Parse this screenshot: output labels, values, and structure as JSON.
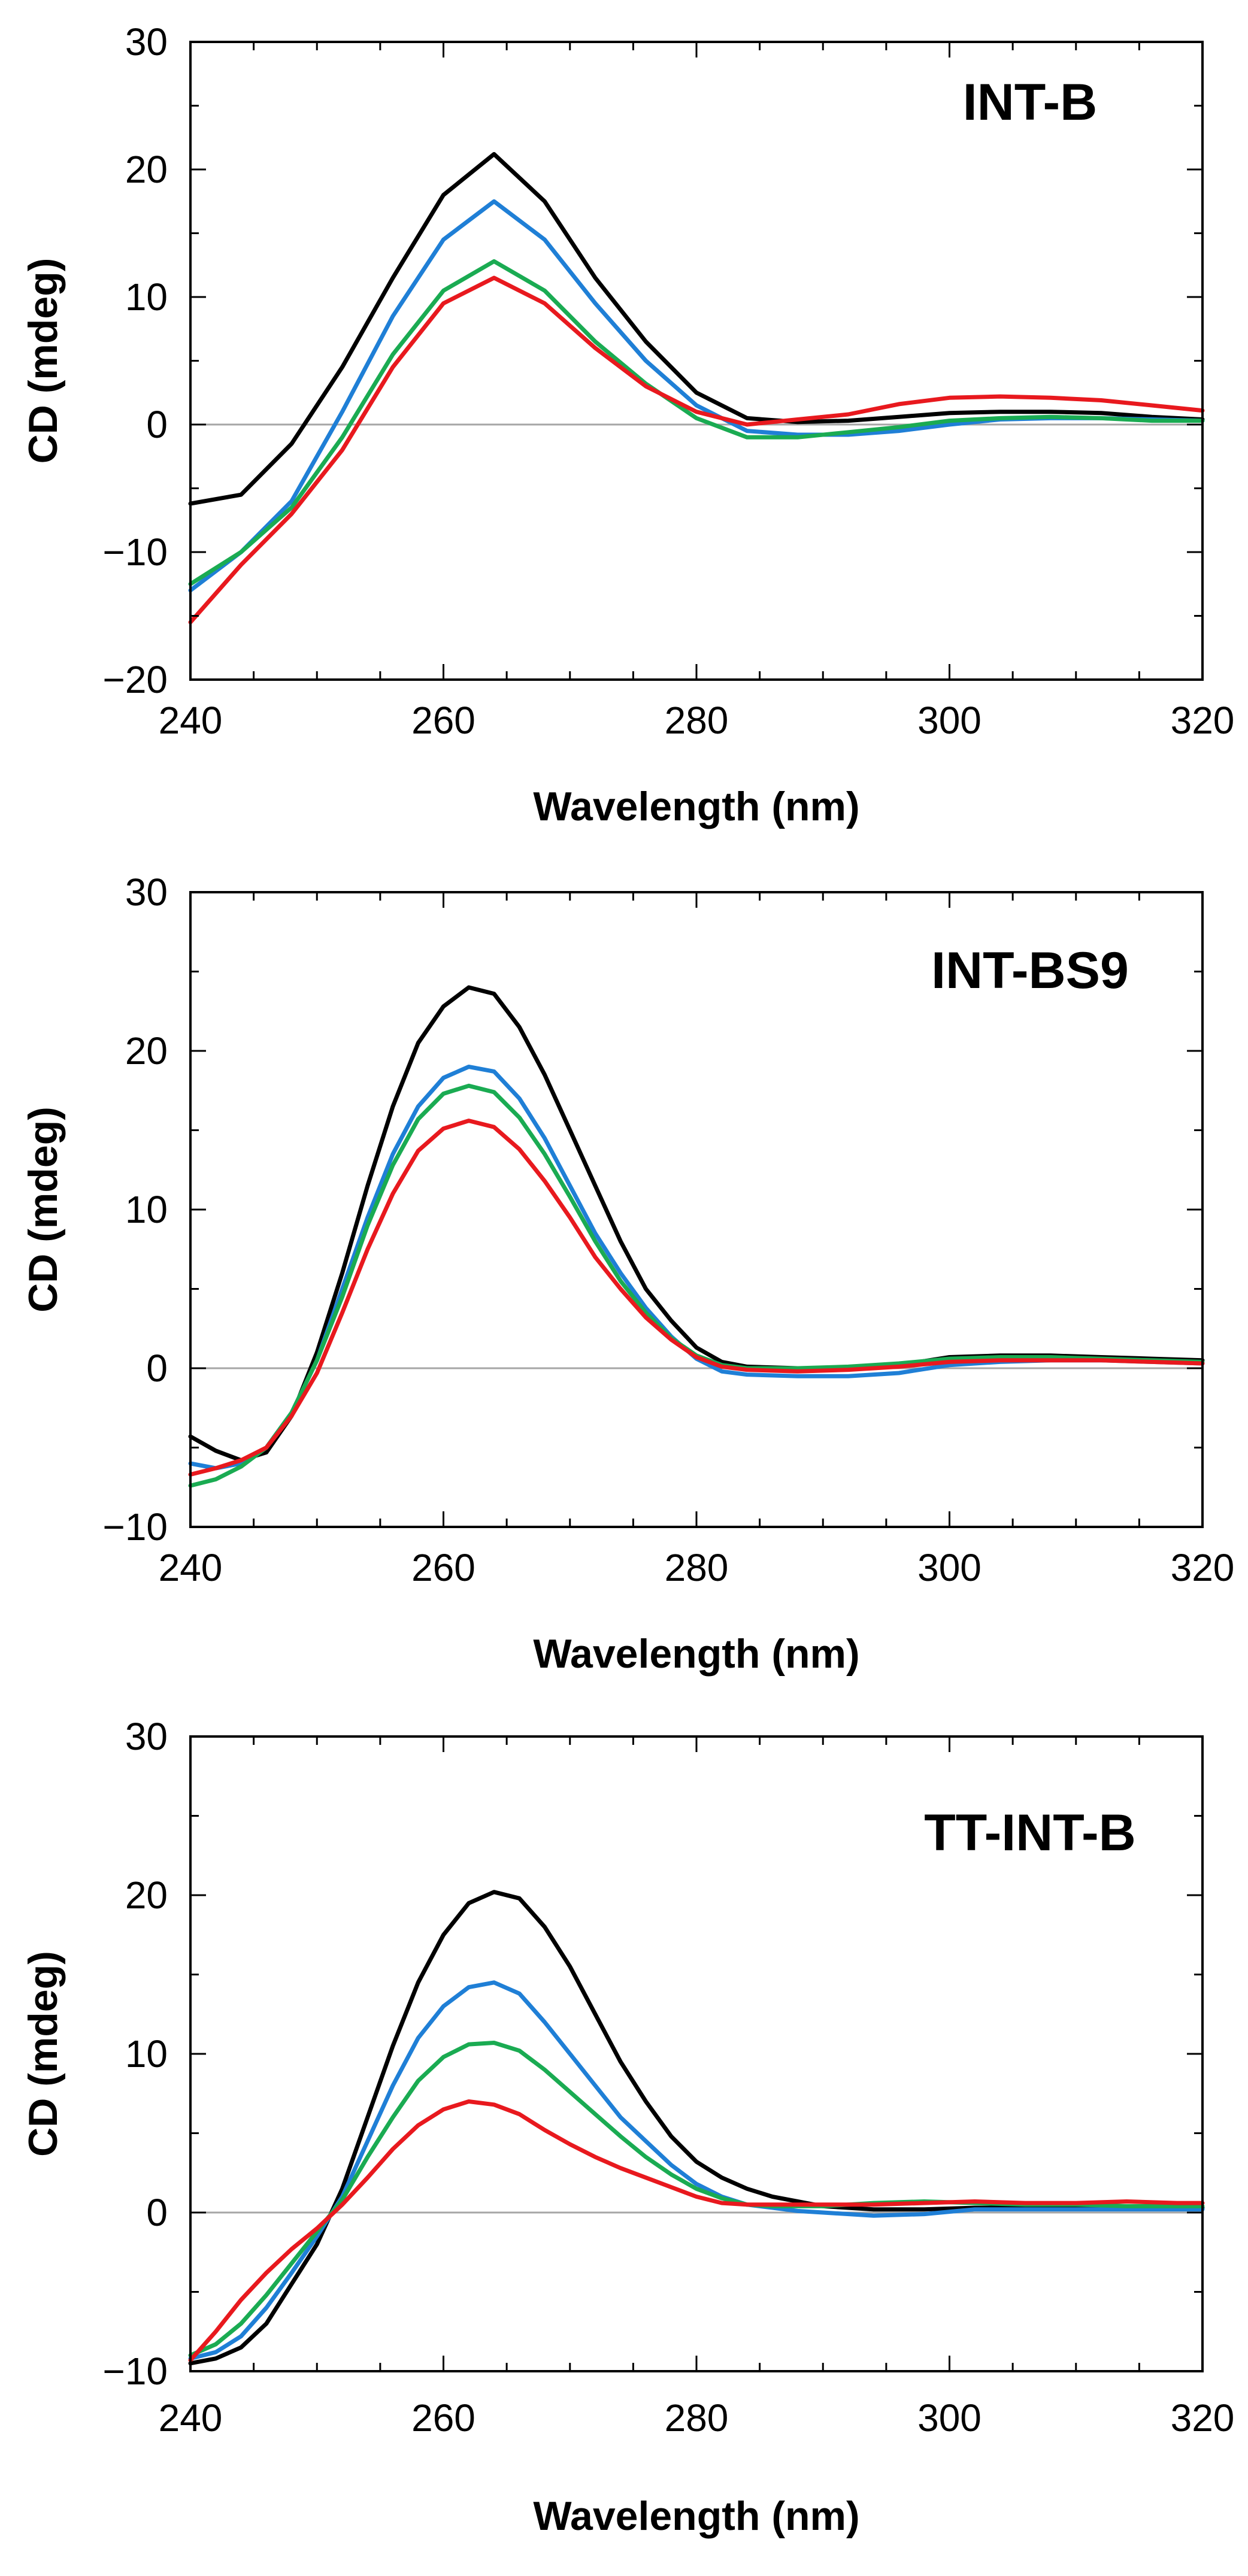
{
  "chart_data": [
    {
      "type": "line",
      "title": "INT-B",
      "xlabel": "Wavelength (nm)",
      "ylabel": "CD (mdeg)",
      "xlim": [
        240,
        320
      ],
      "ylim": [
        -20,
        30
      ],
      "xticks": [
        "240",
        "260",
        "280",
        "300",
        "320"
      ],
      "yticks": [
        "30",
        "20",
        "10",
        "0",
        "−10",
        "−20"
      ],
      "series": [
        {
          "name": "black",
          "color": "#000000",
          "x": [
            240,
            244,
            248,
            252,
            256,
            260,
            264,
            268,
            272,
            276,
            280,
            284,
            288,
            292,
            296,
            300,
            304,
            308,
            312,
            316,
            320
          ],
          "y": [
            -6.2,
            -5.5,
            -1.5,
            4.5,
            11.5,
            18,
            21.2,
            17.5,
            11.5,
            6.5,
            2.5,
            0.5,
            0.2,
            0.3,
            0.6,
            0.9,
            1.0,
            1.0,
            0.9,
            0.6,
            0.4
          ]
        },
        {
          "name": "blue",
          "color": "#1f7fd6",
          "x": [
            240,
            244,
            248,
            252,
            256,
            260,
            264,
            268,
            272,
            276,
            280,
            284,
            288,
            292,
            296,
            300,
            304,
            308,
            312,
            316,
            320
          ],
          "y": [
            -13,
            -10,
            -6,
            1,
            8.5,
            14.5,
            17.5,
            14.5,
            9.5,
            5,
            1.5,
            -0.5,
            -0.8,
            -0.8,
            -0.5,
            0,
            0.4,
            0.5,
            0.5,
            0.4,
            0.3
          ]
        },
        {
          "name": "green",
          "color": "#1aab52",
          "x": [
            240,
            244,
            248,
            252,
            256,
            260,
            264,
            268,
            272,
            276,
            280,
            284,
            288,
            292,
            296,
            300,
            304,
            308,
            312,
            316,
            320
          ],
          "y": [
            -12.5,
            -10,
            -6.5,
            -1,
            5.5,
            10.5,
            12.8,
            10.5,
            6.5,
            3.2,
            0.5,
            -1,
            -1,
            -0.6,
            -0.2,
            0.3,
            0.5,
            0.6,
            0.5,
            0.3,
            0.3
          ]
        },
        {
          "name": "red",
          "color": "#e8191e",
          "x": [
            240,
            244,
            248,
            252,
            256,
            260,
            264,
            268,
            272,
            276,
            280,
            284,
            288,
            292,
            296,
            300,
            304,
            308,
            312,
            316,
            320
          ],
          "y": [
            -15.5,
            -11,
            -7,
            -2,
            4.5,
            9.5,
            11.5,
            9.5,
            6,
            3,
            1,
            0,
            0.4,
            0.8,
            1.6,
            2.1,
            2.2,
            2.1,
            1.9,
            1.5,
            1.1
          ]
        }
      ]
    },
    {
      "type": "line",
      "title": "INT-BS9",
      "xlabel": "Wavelength (nm)",
      "ylabel": "CD (mdeg)",
      "xlim": [
        240,
        320
      ],
      "ylim": [
        -10,
        30
      ],
      "xticks": [
        "240",
        "260",
        "280",
        "300",
        "320"
      ],
      "yticks": [
        "30",
        "20",
        "10",
        "0",
        "−10"
      ],
      "series": [
        {
          "name": "black",
          "color": "#000000",
          "x": [
            240,
            242,
            244,
            246,
            248,
            250,
            252,
            254,
            256,
            258,
            260,
            262,
            264,
            266,
            268,
            270,
            272,
            274,
            276,
            278,
            280,
            282,
            284,
            288,
            292,
            296,
            300,
            304,
            308,
            312,
            316,
            320
          ],
          "y": [
            -4.3,
            -5.2,
            -5.8,
            -5.3,
            -3,
            1,
            6,
            11.5,
            16.5,
            20.5,
            22.8,
            24,
            23.6,
            21.5,
            18.5,
            15,
            11.5,
            8,
            5,
            3,
            1.3,
            0.4,
            0.1,
            0,
            0,
            0.2,
            0.7,
            0.8,
            0.8,
            0.7,
            0.6,
            0.5
          ]
        },
        {
          "name": "blue",
          "color": "#1f7fd6",
          "x": [
            240,
            242,
            244,
            246,
            248,
            250,
            252,
            254,
            256,
            258,
            260,
            262,
            264,
            266,
            268,
            270,
            272,
            274,
            276,
            278,
            280,
            282,
            284,
            288,
            292,
            296,
            300,
            304,
            308,
            312,
            316,
            320
          ],
          "y": [
            -6,
            -6.3,
            -6,
            -5,
            -2.8,
            0.5,
            5,
            9.5,
            13.5,
            16.5,
            18.3,
            19,
            18.7,
            17,
            14.5,
            11.5,
            8.5,
            6,
            3.8,
            2,
            0.6,
            -0.2,
            -0.4,
            -0.5,
            -0.5,
            -0.3,
            0.2,
            0.4,
            0.5,
            0.5,
            0.4,
            0.3
          ]
        },
        {
          "name": "green",
          "color": "#1aab52",
          "x": [
            240,
            242,
            244,
            246,
            248,
            250,
            252,
            254,
            256,
            258,
            260,
            262,
            264,
            266,
            268,
            270,
            272,
            274,
            276,
            278,
            280,
            282,
            284,
            288,
            292,
            296,
            300,
            304,
            308,
            312,
            316,
            320
          ],
          "y": [
            -7.4,
            -7,
            -6.2,
            -5,
            -2.8,
            0.5,
            4.5,
            9,
            12.8,
            15.7,
            17.3,
            17.8,
            17.4,
            15.8,
            13.5,
            10.8,
            8,
            5.5,
            3.5,
            1.9,
            0.8,
            0.2,
            0,
            0,
            0.1,
            0.3,
            0.6,
            0.7,
            0.7,
            0.6,
            0.5,
            0.4
          ]
        },
        {
          "name": "red",
          "color": "#e8191e",
          "x": [
            240,
            242,
            244,
            246,
            248,
            250,
            252,
            254,
            256,
            258,
            260,
            262,
            264,
            266,
            268,
            270,
            272,
            274,
            276,
            278,
            280,
            282,
            284,
            288,
            292,
            296,
            300,
            304,
            308,
            312,
            316,
            320
          ],
          "y": [
            -6.7,
            -6.3,
            -5.8,
            -5,
            -3,
            -0.3,
            3.5,
            7.5,
            11,
            13.7,
            15.1,
            15.6,
            15.2,
            13.8,
            11.8,
            9.5,
            7,
            5,
            3.2,
            1.8,
            0.7,
            0.1,
            -0.1,
            -0.2,
            -0.1,
            0.1,
            0.4,
            0.5,
            0.5,
            0.5,
            0.4,
            0.3
          ]
        }
      ]
    },
    {
      "type": "line",
      "title": "TT-INT-B",
      "xlabel": "Wavelength (nm)",
      "ylabel": "CD (mdeg)",
      "xlim": [
        240,
        320
      ],
      "ylim": [
        -10,
        30
      ],
      "xticks": [
        "240",
        "260",
        "280",
        "300",
        "320"
      ],
      "yticks": [
        "30",
        "20",
        "10",
        "0",
        "−10"
      ],
      "series": [
        {
          "name": "black",
          "color": "#000000",
          "x": [
            240,
            242,
            244,
            246,
            248,
            250,
            252,
            254,
            256,
            258,
            260,
            262,
            264,
            266,
            268,
            270,
            272,
            274,
            276,
            278,
            280,
            282,
            284,
            286,
            288,
            290,
            294,
            298,
            302,
            306,
            310,
            314,
            318,
            320
          ],
          "y": [
            -9.5,
            -9.2,
            -8.5,
            -7,
            -4.5,
            -2,
            1.5,
            6,
            10.5,
            14.5,
            17.5,
            19.5,
            20.2,
            19.8,
            18,
            15.5,
            12.5,
            9.5,
            7,
            4.8,
            3.2,
            2.2,
            1.5,
            1,
            0.7,
            0.4,
            0.2,
            0.2,
            0.3,
            0.3,
            0.3,
            0.3,
            0.3,
            0.3
          ]
        },
        {
          "name": "blue",
          "color": "#1f7fd6",
          "x": [
            240,
            242,
            244,
            246,
            248,
            250,
            252,
            254,
            256,
            258,
            260,
            262,
            264,
            266,
            268,
            270,
            272,
            274,
            276,
            278,
            280,
            282,
            284,
            286,
            288,
            290,
            294,
            298,
            302,
            306,
            310,
            314,
            318,
            320
          ],
          "y": [
            -9.2,
            -8.8,
            -7.8,
            -6,
            -3.8,
            -1.5,
            1,
            4.5,
            8,
            11,
            13,
            14.2,
            14.5,
            13.8,
            12,
            10,
            8,
            6,
            4.5,
            3,
            1.8,
            1,
            0.5,
            0.3,
            0.1,
            0,
            -0.2,
            -0.1,
            0.2,
            0.2,
            0.2,
            0.2,
            0.2,
            0.2
          ]
        },
        {
          "name": "green",
          "color": "#1aab52",
          "x": [
            240,
            242,
            244,
            246,
            248,
            250,
            252,
            254,
            256,
            258,
            260,
            262,
            264,
            266,
            268,
            270,
            272,
            274,
            276,
            278,
            280,
            282,
            284,
            286,
            288,
            290,
            294,
            298,
            302,
            306,
            310,
            314,
            318,
            320
          ],
          "y": [
            -9,
            -8.3,
            -7,
            -5.2,
            -3.2,
            -1.2,
            0.8,
            3.5,
            6,
            8.3,
            9.8,
            10.6,
            10.7,
            10.2,
            9,
            7.6,
            6.2,
            4.8,
            3.5,
            2.4,
            1.5,
            0.9,
            0.5,
            0.4,
            0.4,
            0.4,
            0.6,
            0.7,
            0.6,
            0.5,
            0.5,
            0.4,
            0.4,
            0.4
          ]
        },
        {
          "name": "red",
          "color": "#e8191e",
          "x": [
            240,
            242,
            244,
            246,
            248,
            250,
            252,
            254,
            256,
            258,
            260,
            262,
            264,
            266,
            268,
            270,
            272,
            274,
            276,
            278,
            280,
            282,
            284,
            286,
            288,
            290,
            294,
            298,
            302,
            306,
            310,
            314,
            318,
            320
          ],
          "y": [
            -9.3,
            -7.5,
            -5.5,
            -3.8,
            -2.3,
            -1,
            0.5,
            2.2,
            4,
            5.5,
            6.5,
            7,
            6.8,
            6.2,
            5.2,
            4.3,
            3.5,
            2.8,
            2.2,
            1.6,
            1,
            0.6,
            0.5,
            0.5,
            0.5,
            0.5,
            0.5,
            0.6,
            0.7,
            0.6,
            0.6,
            0.7,
            0.6,
            0.6
          ]
        }
      ]
    }
  ]
}
